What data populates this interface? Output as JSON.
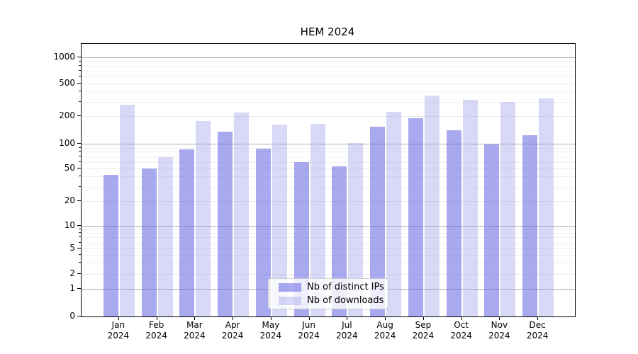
{
  "chart_data": {
    "type": "bar",
    "title": "HEM 2024",
    "xlabel": "",
    "ylabel": "",
    "yscale": "symlog",
    "ylim": [
      0,
      1450
    ],
    "grid": true,
    "legend_position": "lower center",
    "y_ticks": [
      0,
      1,
      2,
      5,
      10,
      20,
      50,
      100,
      200,
      500,
      1000
    ],
    "y_minor_ticks": [
      3,
      4,
      6,
      7,
      8,
      9,
      30,
      40,
      60,
      70,
      80,
      90,
      300,
      400,
      600,
      700,
      800,
      900
    ],
    "categories": [
      {
        "month": "Jan",
        "year": "2024"
      },
      {
        "month": "Feb",
        "year": "2024"
      },
      {
        "month": "Mar",
        "year": "2024"
      },
      {
        "month": "Apr",
        "year": "2024"
      },
      {
        "month": "May",
        "year": "2024"
      },
      {
        "month": "Jun",
        "year": "2024"
      },
      {
        "month": "Jul",
        "year": "2024"
      },
      {
        "month": "Aug",
        "year": "2024"
      },
      {
        "month": "Sep",
        "year": "2024"
      },
      {
        "month": "Oct",
        "year": "2024"
      },
      {
        "month": "Nov",
        "year": "2024"
      },
      {
        "month": "Dec",
        "year": "2024"
      }
    ],
    "series": [
      {
        "name": "Nb of distinct IPs",
        "color": "rgba(112,112,228,0.6)",
        "values": [
          42,
          50,
          85,
          136,
          87,
          60,
          53,
          154,
          190,
          140,
          98,
          125
        ]
      },
      {
        "name": "Nb of downloads",
        "color": "rgba(158,158,235,0.4)",
        "values": [
          276,
          68,
          177,
          224,
          162,
          165,
          102,
          226,
          355,
          314,
          298,
          331
        ]
      }
    ],
    "colors": {
      "grid_major": "#ababab",
      "grid_minor": "#ebebeb",
      "axis": "#000000",
      "legend_border": "#cccccc"
    }
  }
}
